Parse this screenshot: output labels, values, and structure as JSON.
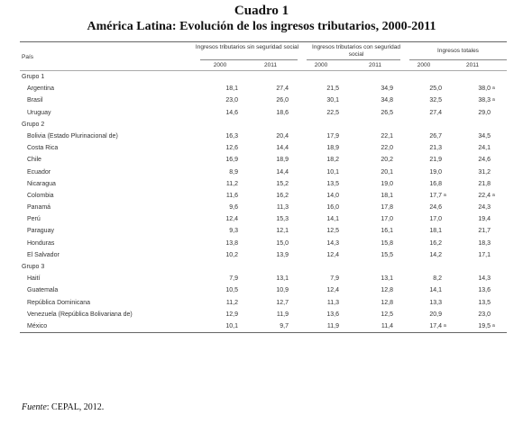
{
  "title": "Cuadro 1",
  "subtitle": "América Latina: Evolución de los ingresos tributarios, 2000-2011",
  "header": {
    "country": "País",
    "groups": [
      "Ingresos tributarios sin seguridad social",
      "Ingresos tributarios con seguridad social",
      "Ingresos totales"
    ],
    "years": [
      "2000",
      "2011",
      "2000",
      "2011",
      "2000",
      "2011"
    ]
  },
  "groups": [
    {
      "name": "Grupo 1",
      "rows": [
        {
          "country": "Argentina",
          "v": [
            "18,1",
            "27,4",
            "21,5",
            "34,9",
            "25,0",
            "38,0"
          ],
          "m": [
            "",
            "",
            "",
            "",
            "",
            "a"
          ]
        },
        {
          "country": "Brasil",
          "v": [
            "23,0",
            "26,0",
            "30,1",
            "34,8",
            "32,5",
            "38,3"
          ],
          "m": [
            "",
            "",
            "",
            "",
            "",
            "a"
          ]
        },
        {
          "country": "Uruguay",
          "v": [
            "14,6",
            "18,6",
            "22,5",
            "26,5",
            "27,4",
            "29,0"
          ],
          "m": [
            "",
            "",
            "",
            "",
            "",
            ""
          ]
        }
      ]
    },
    {
      "name": "Grupo 2",
      "rows": [
        {
          "country": "Bolivia (Estado Plurinacional de)",
          "v": [
            "16,3",
            "20,4",
            "17,9",
            "22,1",
            "26,7",
            "34,5"
          ],
          "m": [
            "",
            "",
            "",
            "",
            "",
            ""
          ]
        },
        {
          "country": "Costa Rica",
          "v": [
            "12,6",
            "14,4",
            "18,9",
            "22,0",
            "21,3",
            "24,1"
          ],
          "m": [
            "",
            "",
            "",
            "",
            "",
            ""
          ]
        },
        {
          "country": "Chile",
          "v": [
            "16,9",
            "18,9",
            "18,2",
            "20,2",
            "21,9",
            "24,6"
          ],
          "m": [
            "",
            "",
            "",
            "",
            "",
            ""
          ]
        },
        {
          "country": "Ecuador",
          "v": [
            "8,9",
            "14,4",
            "10,1",
            "20,1",
            "19,0",
            "31,2"
          ],
          "m": [
            "",
            "",
            "",
            "",
            "",
            ""
          ]
        },
        {
          "country": "Nicaragua",
          "v": [
            "11,2",
            "15,2",
            "13,5",
            "19,0",
            "16,8",
            "21,8"
          ],
          "m": [
            "",
            "",
            "",
            "",
            "",
            ""
          ]
        },
        {
          "country": "Colombia",
          "v": [
            "11,6",
            "16,2",
            "14,0",
            "18,1",
            "17,7",
            "22,4"
          ],
          "m": [
            "",
            "",
            "",
            "",
            "a",
            "a"
          ]
        },
        {
          "country": "Panamá",
          "v": [
            "9,6",
            "11,3",
            "16,0",
            "17,8",
            "24,6",
            "24,3"
          ],
          "m": [
            "",
            "",
            "",
            "",
            "",
            ""
          ]
        },
        {
          "country": "Perú",
          "v": [
            "12,4",
            "15,3",
            "14,1",
            "17,0",
            "17,0",
            "19,4"
          ],
          "m": [
            "",
            "",
            "",
            "",
            "",
            ""
          ]
        },
        {
          "country": "Paraguay",
          "v": [
            "9,3",
            "12,1",
            "12,5",
            "16,1",
            "18,1",
            "21,7"
          ],
          "m": [
            "",
            "",
            "",
            "",
            "",
            ""
          ]
        },
        {
          "country": "Honduras",
          "v": [
            "13,8",
            "15,0",
            "14,3",
            "15,8",
            "16,2",
            "18,3"
          ],
          "m": [
            "",
            "",
            "",
            "",
            "",
            ""
          ]
        },
        {
          "country": "El Salvador",
          "v": [
            "10,2",
            "13,9",
            "12,4",
            "15,5",
            "14,2",
            "17,1"
          ],
          "m": [
            "",
            "",
            "",
            "",
            "",
            ""
          ]
        }
      ]
    },
    {
      "name": "Grupo 3",
      "rows": [
        {
          "country": "Haití",
          "v": [
            "7,9",
            "13,1",
            "7,9",
            "13,1",
            "8,2",
            "14,3"
          ],
          "m": [
            "",
            "",
            "",
            "",
            "",
            ""
          ]
        },
        {
          "country": "Guatemala",
          "v": [
            "10,5",
            "10,9",
            "12,4",
            "12,8",
            "14,1",
            "13,6"
          ],
          "m": [
            "",
            "",
            "",
            "",
            "",
            ""
          ]
        },
        {
          "country": "República Dominicana",
          "v": [
            "11,2",
            "12,7",
            "11,3",
            "12,8",
            "13,3",
            "13,5"
          ],
          "m": [
            "",
            "",
            "",
            "",
            "",
            ""
          ]
        },
        {
          "country": "Venezuela (República Bolivariana de)",
          "v": [
            "12,9",
            "11,9",
            "13,6",
            "12,5",
            "20,9",
            "23,0"
          ],
          "m": [
            "",
            "",
            "",
            "",
            "",
            ""
          ]
        },
        {
          "country": "México",
          "v": [
            "10,1",
            "9,7",
            "11,9",
            "11,4",
            "17,4",
            "19,5"
          ],
          "m": [
            "",
            "",
            "",
            "",
            "a",
            "a"
          ]
        }
      ]
    }
  ],
  "source": {
    "label": "Fuente",
    "text": ": CEPAL, 2012."
  }
}
